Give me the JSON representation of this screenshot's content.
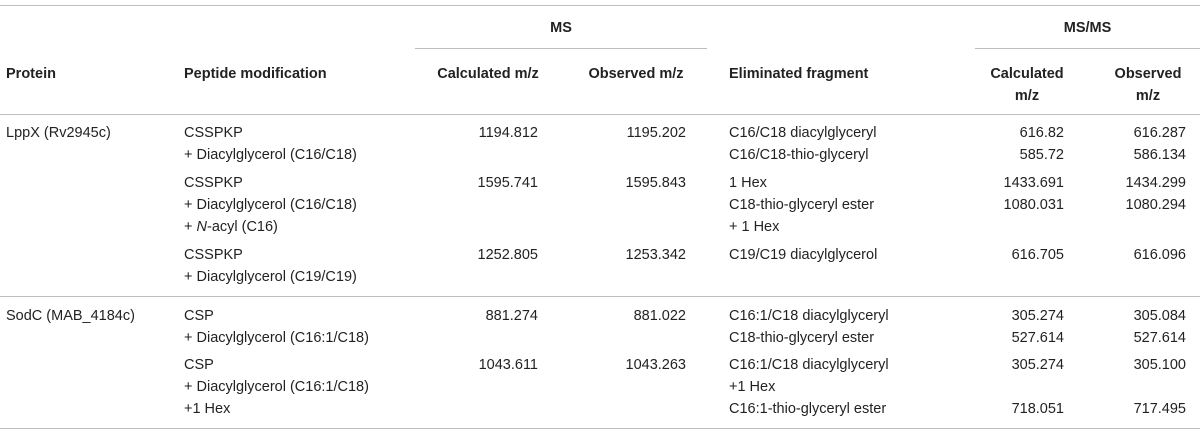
{
  "header": {
    "group_ms": "MS",
    "group_msms": "MS/MS",
    "protein": "Protein",
    "peptide_modification": "Peptide modification",
    "calc_mz": "Calculated m/z",
    "obs_mz": "Observed m/z",
    "eliminated_fragment": "Eliminated fragment",
    "msms_calc_line1": "Calculated",
    "msms_calc_line2": "m/z",
    "msms_obs_line1": "Observed",
    "msms_obs_line2": "m/z"
  },
  "groups": [
    {
      "protein": "LppX (Rv2945c)",
      "rows": [
        {
          "peptide": [
            "CSSPKP",
            "+ Diacylglycerol (C16/C18)"
          ],
          "calc": "1194.812",
          "obs": "1195.202",
          "fragments": [
            "C16/C18 diacylglyceryl",
            "C16/C18-thio-glyceryl"
          ],
          "msms_calc": [
            "616.82",
            "585.72"
          ],
          "msms_obs": [
            "616.287",
            "586.134"
          ]
        },
        {
          "peptide": [
            "CSSPKP",
            "+ Diacylglycerol (C16/C18)",
            "+ ",
            "N",
            "-acyl (C16)"
          ],
          "calc": "1595.741",
          "obs": "1595.843",
          "fragments": [
            "1 Hex",
            "C18-thio-glyceryl ester",
            "+ 1 Hex"
          ],
          "msms_calc": [
            "1433.691",
            "1080.031"
          ],
          "msms_obs": [
            "1434.299",
            "1080.294"
          ]
        },
        {
          "peptide": [
            "CSSPKP",
            "+ Diacylglycerol (C19/C19)"
          ],
          "calc": "1252.805",
          "obs": "1253.342",
          "fragments": [
            "C19/C19 diacylglycerol"
          ],
          "msms_calc": [
            "616.705"
          ],
          "msms_obs": [
            "616.096"
          ]
        }
      ]
    },
    {
      "protein": "SodC (MAB_4184c)",
      "rows": [
        {
          "peptide": [
            "CSP",
            "+ Diacylglycerol (C16:1/C18)"
          ],
          "calc": "881.274",
          "obs": "881.022",
          "fragments": [
            "C16:1/C18 diacylglyceryl",
            "C18-thio-glyceryl ester"
          ],
          "msms_calc": [
            "305.274",
            "527.614"
          ],
          "msms_obs": [
            "305.084",
            "527.614"
          ]
        },
        {
          "peptide": [
            "CSP",
            "+ Diacylglycerol (C16:1/C18)",
            "+1 Hex"
          ],
          "calc": "1043.611",
          "obs": "1043.263",
          "fragments": [
            "C16:1/C18 diacylglyceryl",
            "+1 Hex",
            "C16:1-thio-glyceryl ester"
          ],
          "msms_calc": [
            "305.274",
            "",
            "718.051"
          ],
          "msms_obs": [
            "305.100",
            "",
            "717.495"
          ]
        }
      ]
    }
  ]
}
